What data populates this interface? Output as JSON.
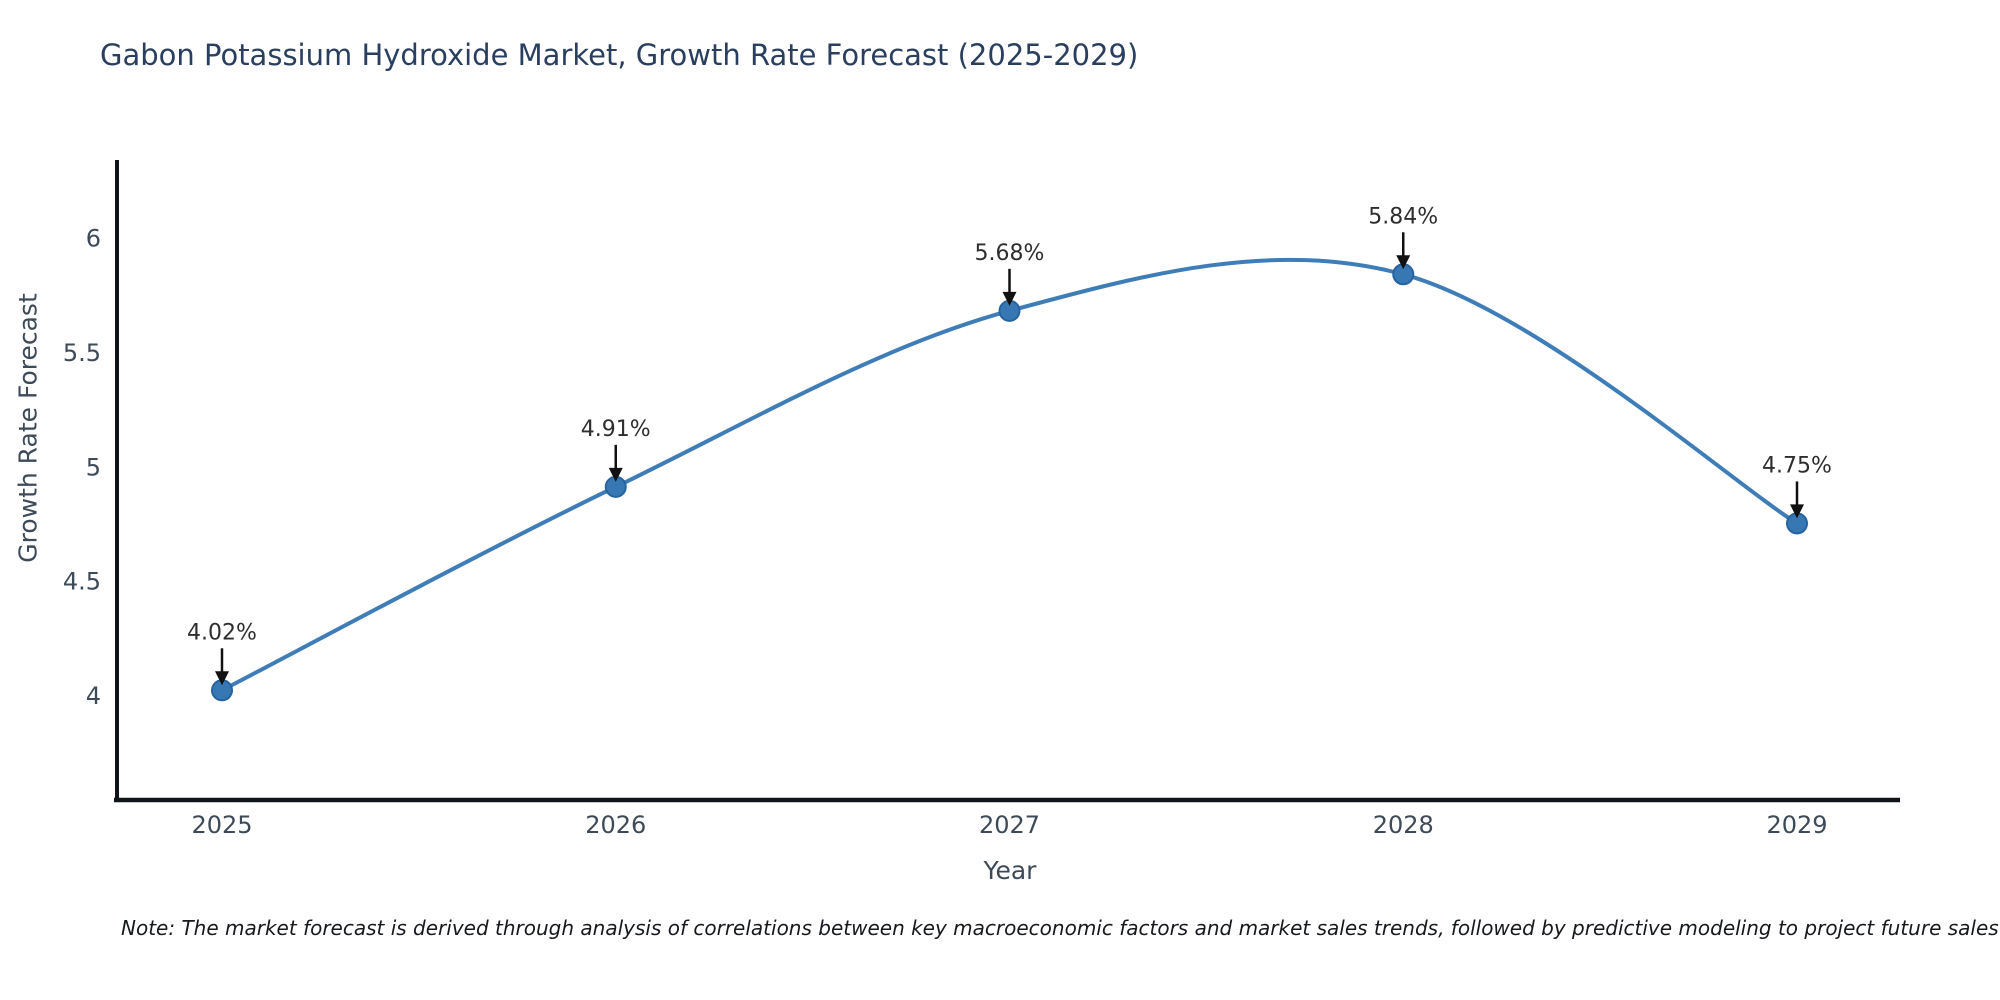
{
  "title": "Gabon Potassium Hydroxide Market, Growth Rate Forecast (2025-2029)",
  "footnote": "Note: The market forecast is derived through analysis of correlations between key macroeconomic factors and market sales trends, followed by predictive modeling to project future sales",
  "chart_data": {
    "type": "line",
    "title": "Gabon Potassium Hydroxide Market, Growth Rate Forecast (2025-2029)",
    "xlabel": "Year",
    "ylabel": "Growth Rate Forecast",
    "categories": [
      "2025",
      "2026",
      "2027",
      "2028",
      "2029"
    ],
    "series": [
      {
        "name": "Growth Rate Forecast",
        "values": [
          4.02,
          4.91,
          5.68,
          5.84,
          4.75
        ],
        "point_labels": [
          "4.02%",
          "4.91%",
          "5.68%",
          "5.84%",
          "4.75%"
        ]
      }
    ],
    "ytick_labels": [
      "4",
      "4.5",
      "5",
      "5.5",
      "6"
    ],
    "ytick_values": [
      4,
      4.5,
      5,
      5.5,
      6
    ],
    "ylim": [
      3.54,
      6.34
    ],
    "grid": false,
    "legend": null,
    "line_style": "smooth-spline",
    "annotations": "value labels with downward black arrows above each point",
    "colors": {
      "line": "#3e7db8",
      "marker_fill": "#3778b4",
      "marker_edge": "#27639e",
      "axis_line": "#101418",
      "tick_label": "#3d4a57",
      "title": "#2a3f5f",
      "annotation_text": "#2e2e2e",
      "arrow": "#111111",
      "note_text": "#16191d",
      "background": "#ffffff"
    }
  }
}
